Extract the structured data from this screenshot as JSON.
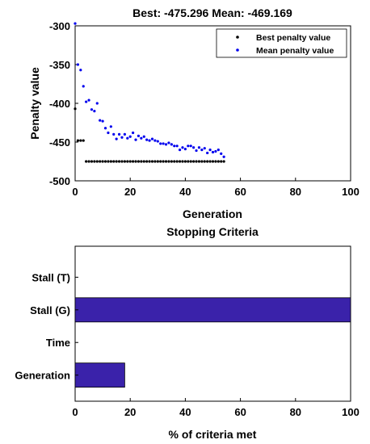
{
  "chart_data": [
    {
      "type": "scatter",
      "title": "Best: -475.296 Mean: -469.169",
      "xlabel": "Generation",
      "ylabel": "Penalty value",
      "xlim": [
        0,
        100
      ],
      "ylim": [
        -500,
        -300
      ],
      "xticks": [
        "0",
        "20",
        "40",
        "60",
        "80",
        "100"
      ],
      "yticks": [
        "-300",
        "-350",
        "-400",
        "-450",
        "-500"
      ],
      "legend_position": "top-right",
      "series": [
        {
          "name": "Best penalty value",
          "color": "#000000",
          "x": [
            0,
            1,
            2,
            3,
            4,
            5,
            6,
            7,
            8,
            9,
            10,
            11,
            12,
            13,
            14,
            15,
            16,
            17,
            18,
            19,
            20,
            21,
            22,
            23,
            24,
            25,
            26,
            27,
            28,
            29,
            30,
            31,
            32,
            33,
            34,
            35,
            36,
            37,
            38,
            39,
            40,
            41,
            42,
            43,
            44,
            45,
            46,
            47,
            48,
            49,
            50,
            51,
            52,
            53,
            54
          ],
          "y": [
            -407,
            -448,
            -448,
            -448,
            -475,
            -475,
            -475,
            -475,
            -475,
            -475,
            -475,
            -475,
            -475,
            -475,
            -475,
            -475,
            -475,
            -475,
            -475,
            -475,
            -475,
            -475,
            -475,
            -475,
            -475,
            -475,
            -475,
            -475,
            -475,
            -475,
            -475,
            -475,
            -475,
            -475,
            -475,
            -475,
            -475,
            -475,
            -475,
            -475,
            -475,
            -475,
            -475,
            -475,
            -475,
            -475,
            -475,
            -475,
            -475,
            -475,
            -475,
            -475,
            -475,
            -475,
            -475
          ]
        },
        {
          "name": "Mean penalty value",
          "color": "#0000ee",
          "x": [
            0,
            1,
            2,
            3,
            4,
            5,
            6,
            7,
            8,
            9,
            10,
            11,
            12,
            13,
            14,
            15,
            16,
            17,
            18,
            19,
            20,
            21,
            22,
            23,
            24,
            25,
            26,
            27,
            28,
            29,
            30,
            31,
            32,
            33,
            34,
            35,
            36,
            37,
            38,
            39,
            40,
            41,
            42,
            43,
            44,
            45,
            46,
            47,
            48,
            49,
            50,
            51,
            52,
            53,
            54
          ],
          "y": [
            -297,
            -350,
            -357,
            -378,
            -398,
            -396,
            -408,
            -410,
            -400,
            -422,
            -423,
            -432,
            -438,
            -430,
            -440,
            -446,
            -440,
            -444,
            -440,
            -445,
            -443,
            -438,
            -447,
            -442,
            -445,
            -443,
            -447,
            -448,
            -446,
            -448,
            -449,
            -452,
            -452,
            -453,
            -451,
            -453,
            -455,
            -455,
            -460,
            -457,
            -459,
            -455,
            -455,
            -457,
            -461,
            -457,
            -460,
            -458,
            -464,
            -460,
            -463,
            -462,
            -460,
            -465,
            -469
          ]
        }
      ]
    },
    {
      "type": "bar",
      "orientation": "horizontal",
      "title": "Stopping Criteria",
      "xlabel": "% of criteria met",
      "ylabel": "",
      "xlim": [
        0,
        100
      ],
      "xticks": [
        "0",
        "20",
        "40",
        "60",
        "80",
        "100"
      ],
      "categories": [
        "Stall (T)",
        "Stall (G)",
        "Time",
        "Generation"
      ],
      "values": [
        0,
        100,
        0,
        18
      ],
      "color": "#3a22aa"
    }
  ]
}
